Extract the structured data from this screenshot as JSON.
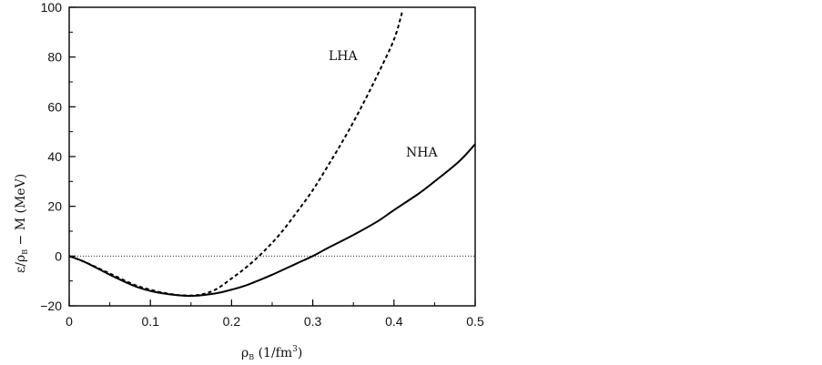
{
  "chart_data": {
    "type": "line",
    "title": "",
    "xlabel": "ρ_B (1/fm³)",
    "xlabel_parts": {
      "main": "ρ",
      "sub": "B",
      "rest": " (1/fm",
      "sup": "3",
      "end": ")"
    },
    "ylabel": "ε/ρ_B − M (MeV)",
    "ylabel_parts": {
      "a": "ε/ρ",
      "sub": "B",
      "b": " − M (MeV)"
    },
    "xlim": [
      0,
      0.5
    ],
    "ylim": [
      -20,
      100
    ],
    "xticks": [
      0,
      0.1,
      0.2,
      0.3,
      0.4,
      0.5
    ],
    "xtick_labels": [
      "0",
      "0.1",
      "0.2",
      "0.3",
      "0.4",
      "0.5"
    ],
    "yticks": [
      -20,
      0,
      20,
      40,
      60,
      80,
      100
    ],
    "ytick_labels": [
      "−20",
      "0",
      "20",
      "40",
      "60",
      "80",
      "100"
    ],
    "grid": false,
    "reference_line": {
      "y": 0,
      "style": "dotted"
    },
    "series": [
      {
        "name": "LHA",
        "style": "dashed",
        "x": [
          0,
          0.02,
          0.05,
          0.08,
          0.1,
          0.12,
          0.14,
          0.16,
          0.18,
          0.2,
          0.22,
          0.24,
          0.26,
          0.28,
          0.3,
          0.32,
          0.34,
          0.36,
          0.38,
          0.4,
          0.41
        ],
        "y": [
          0,
          -2.5,
          -7,
          -11.5,
          -13.5,
          -15,
          -15.8,
          -15.6,
          -13.5,
          -9,
          -4,
          2,
          9,
          17.5,
          26.5,
          37,
          48,
          60,
          73,
          87,
          98
        ]
      },
      {
        "name": "NHA",
        "style": "solid",
        "x": [
          0,
          0.02,
          0.05,
          0.08,
          0.1,
          0.12,
          0.15,
          0.18,
          0.2,
          0.22,
          0.25,
          0.28,
          0.3,
          0.32,
          0.35,
          0.38,
          0.4,
          0.43,
          0.45,
          0.48,
          0.5
        ],
        "y": [
          0,
          -2.5,
          -7.5,
          -12,
          -14,
          -15.2,
          -16,
          -15,
          -13.5,
          -11.5,
          -7.5,
          -3,
          0,
          3.5,
          8.5,
          14,
          18.5,
          25,
          30,
          38,
          45
        ]
      }
    ]
  }
}
